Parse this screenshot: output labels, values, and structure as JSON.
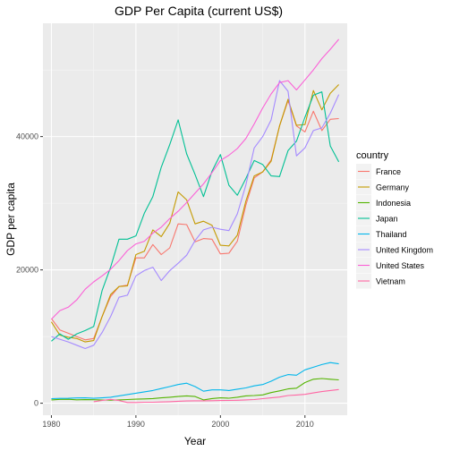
{
  "chart_data": {
    "type": "line",
    "title": "GDP Per Capita (current US$)",
    "xlabel": "Year",
    "ylabel": "GDP per capita",
    "xlim": [
      1979,
      2015
    ],
    "ylim": [
      -1800,
      57000
    ],
    "x_ticks": [
      1980,
      1990,
      2000,
      2010
    ],
    "y_ticks": [
      0,
      20000,
      40000
    ],
    "grid": true,
    "background": "#ebebeb",
    "legend": {
      "title": "country",
      "position": "right"
    },
    "series": [
      {
        "name": "France",
        "color": "#f8766d",
        "x": [
          1980,
          1981,
          1982,
          1983,
          1984,
          1985,
          1986,
          1987,
          1988,
          1989,
          1990,
          1991,
          1992,
          1993,
          1994,
          1995,
          1996,
          1997,
          1998,
          1999,
          2000,
          2001,
          2002,
          2003,
          2004,
          2005,
          2006,
          2007,
          2008,
          2009,
          2010,
          2011,
          2012,
          2013,
          2014
        ],
        "values": [
          12700,
          11000,
          10500,
          10000,
          9500,
          9700,
          13000,
          16000,
          17500,
          17700,
          21800,
          21800,
          23800,
          22300,
          23300,
          26900,
          26800,
          24200,
          24700,
          24600,
          22400,
          22500,
          24300,
          29700,
          33800,
          34700,
          36500,
          41600,
          45400,
          41600,
          40700,
          43800,
          40900,
          42600,
          42700
        ]
      },
      {
        "name": "Germany",
        "color": "#c49a00",
        "x": [
          1980,
          1981,
          1982,
          1983,
          1984,
          1985,
          1986,
          1987,
          1988,
          1989,
          1990,
          1991,
          1992,
          1993,
          1994,
          1995,
          1996,
          1997,
          1998,
          1999,
          2000,
          2001,
          2002,
          2003,
          2004,
          2005,
          2006,
          2007,
          2008,
          2009,
          2010,
          2011,
          2012,
          2013,
          2014
        ],
        "values": [
          12200,
          10200,
          9900,
          9700,
          9200,
          9400,
          13000,
          16300,
          17500,
          17600,
          22300,
          22800,
          26000,
          25000,
          27000,
          31700,
          30500,
          26900,
          27300,
          26700,
          23700,
          23600,
          25200,
          30300,
          34100,
          34700,
          36300,
          41600,
          45600,
          41700,
          41800,
          46900,
          44000,
          46500,
          47800
        ]
      },
      {
        "name": "Indonesia",
        "color": "#53b400",
        "x": [
          1980,
          1981,
          1982,
          1983,
          1984,
          1985,
          1986,
          1987,
          1988,
          1989,
          1990,
          1991,
          1992,
          1993,
          1994,
          1995,
          1996,
          1997,
          1998,
          1999,
          2000,
          2001,
          2002,
          2003,
          2004,
          2005,
          2006,
          2007,
          2008,
          2009,
          2010,
          2011,
          2012,
          2013,
          2014
        ],
        "values": [
          500,
          570,
          590,
          510,
          530,
          520,
          480,
          450,
          490,
          550,
          600,
          650,
          700,
          800,
          900,
          1000,
          1100,
          1000,
          500,
          700,
          800,
          750,
          900,
          1100,
          1150,
          1250,
          1600,
          1850,
          2150,
          2250,
          3100,
          3600,
          3700,
          3600,
          3500
        ]
      },
      {
        "name": "Japan",
        "color": "#00c094",
        "x": [
          1980,
          1981,
          1982,
          1983,
          1984,
          1985,
          1986,
          1987,
          1988,
          1989,
          1990,
          1991,
          1992,
          1993,
          1994,
          1995,
          1996,
          1997,
          1998,
          1999,
          2000,
          2001,
          2002,
          2003,
          2004,
          2005,
          2006,
          2007,
          2008,
          2009,
          2010,
          2011,
          2012,
          2013,
          2014
        ],
        "values": [
          9300,
          10400,
          9600,
          10400,
          10900,
          11500,
          16900,
          20400,
          24600,
          24600,
          25100,
          28500,
          31000,
          35400,
          38800,
          42500,
          37400,
          34300,
          31000,
          34800,
          37300,
          32700,
          31200,
          33700,
          36400,
          35800,
          34100,
          34000,
          37900,
          39300,
          42900,
          46200,
          46700,
          38600,
          36200
        ]
      },
      {
        "name": "Thailand",
        "color": "#00b6eb",
        "x": [
          1980,
          1981,
          1982,
          1983,
          1984,
          1985,
          1986,
          1987,
          1988,
          1989,
          1990,
          1991,
          1992,
          1993,
          1994,
          1995,
          1996,
          1997,
          1998,
          1999,
          2000,
          2001,
          2002,
          2003,
          2004,
          2005,
          2006,
          2007,
          2008,
          2009,
          2010,
          2011,
          2012,
          2013,
          2014
        ],
        "values": [
          680,
          720,
          740,
          790,
          800,
          740,
          800,
          900,
          1100,
          1300,
          1500,
          1700,
          1900,
          2200,
          2500,
          2800,
          3000,
          2500,
          1800,
          2000,
          2000,
          1900,
          2100,
          2300,
          2600,
          2800,
          3300,
          3900,
          4300,
          4200,
          5000,
          5400,
          5800,
          6100,
          5900
        ]
      },
      {
        "name": "United Kingdom",
        "color": "#a58aff",
        "x": [
          1980,
          1981,
          1982,
          1983,
          1984,
          1985,
          1986,
          1987,
          1988,
          1989,
          1990,
          1991,
          1992,
          1993,
          1994,
          1995,
          1996,
          1997,
          1998,
          1999,
          2000,
          2001,
          2002,
          2003,
          2004,
          2005,
          2006,
          2007,
          2008,
          2009,
          2010,
          2011,
          2012,
          2013,
          2014
        ],
        "values": [
          10000,
          9600,
          9200,
          8700,
          8200,
          8700,
          10600,
          13000,
          15900,
          16200,
          19100,
          19900,
          20400,
          18400,
          19900,
          21000,
          22200,
          24400,
          26000,
          26400,
          26100,
          25900,
          28400,
          32700,
          38300,
          40000,
          42500,
          48400,
          46800,
          37100,
          38300,
          40900,
          41300,
          43500,
          46300
        ]
      },
      {
        "name": "United States",
        "color": "#fb61d7",
        "x": [
          1980,
          1981,
          1982,
          1983,
          1984,
          1985,
          1986,
          1987,
          1988,
          1989,
          1990,
          1991,
          1992,
          1993,
          1994,
          1995,
          1996,
          1997,
          1998,
          1999,
          2000,
          2001,
          2002,
          2003,
          2004,
          2005,
          2006,
          2007,
          2008,
          2009,
          2010,
          2011,
          2012,
          2013,
          2014
        ],
        "values": [
          12600,
          13900,
          14400,
          15500,
          17100,
          18200,
          19100,
          20100,
          21400,
          22900,
          23900,
          24300,
          25500,
          26400,
          27700,
          28800,
          30100,
          31500,
          32900,
          34600,
          36400,
          37200,
          38200,
          39700,
          41900,
          44300,
          46400,
          48100,
          48400,
          47000,
          48500,
          50000,
          51700,
          53100,
          54600
        ]
      },
      {
        "name": "Vietnam",
        "color": "#ff66a3",
        "x": [
          1985,
          1986,
          1987,
          1988,
          1989,
          1990,
          1991,
          1992,
          1993,
          1994,
          1995,
          1996,
          1997,
          1998,
          1999,
          2000,
          2001,
          2002,
          2003,
          2004,
          2005,
          2006,
          2007,
          2008,
          2009,
          2010,
          2011,
          2012,
          2013,
          2014
        ],
        "values": [
          230,
          420,
          580,
          400,
          100,
          100,
          140,
          140,
          190,
          230,
          290,
          340,
          360,
          360,
          370,
          400,
          410,
          440,
          490,
          550,
          690,
          800,
          920,
          1160,
          1230,
          1330,
          1540,
          1750,
          1900,
          2050
        ]
      }
    ]
  }
}
